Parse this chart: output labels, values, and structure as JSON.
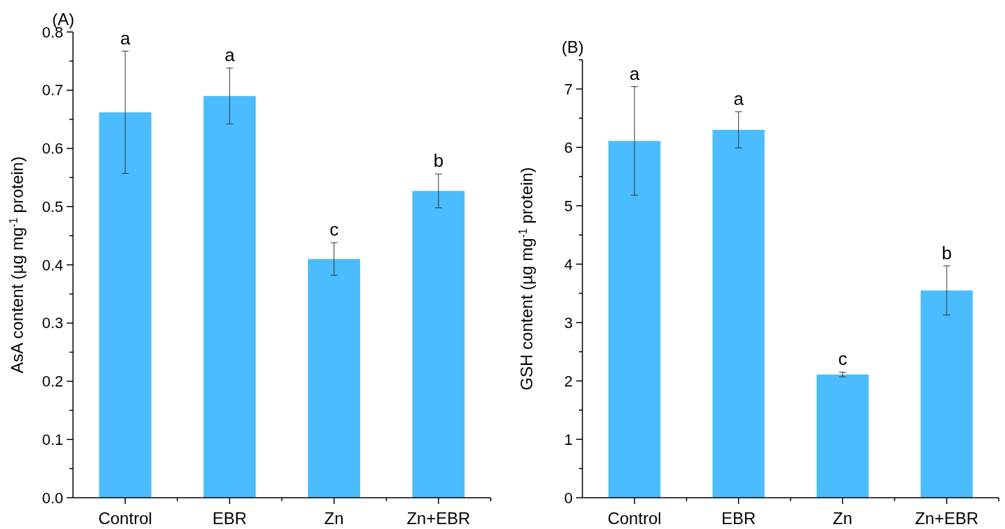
{
  "chart_data": [
    {
      "type": "bar",
      "title": "(A)",
      "ylabel": "AsA content (µg mg$^{-1}$ protein)",
      "categories": [
        "Control",
        "EBR",
        "Zn",
        "Zn+EBR"
      ],
      "values": [
        0.662,
        0.69,
        0.41,
        0.527
      ],
      "errors": [
        0.105,
        0.048,
        0.028,
        0.029
      ],
      "color": "#4bbcfd",
      "ylim": [
        0,
        0.8
      ],
      "yticks": [
        {
          "value": 0,
          "label": "0.0"
        },
        {
          "value": 0.05,
          "label": null
        },
        0.1,
        {
          "value": 0.15,
          "label": null
        },
        0.2,
        {
          "value": 0.25,
          "label": null
        },
        0.3,
        {
          "value": 0.35,
          "label": null
        },
        0.4,
        {
          "value": 0.45,
          "label": null
        },
        0.5,
        {
          "value": 0.55,
          "label": null
        },
        0.6,
        {
          "value": 0.65,
          "label": null
        },
        0.7,
        {
          "value": 0.75,
          "label": null
        },
        0.8
      ],
      "annotations": [
        {
          "text": "a",
          "x": "Control",
          "y": 0.767
        },
        {
          "text": "a",
          "x": "EBR",
          "y": 0.738
        },
        {
          "text": "c",
          "x": "Zn",
          "y": 0.438
        },
        {
          "text": "b",
          "x": "Zn+EBR",
          "y": 0.556
        }
      ]
    },
    {
      "type": "bar",
      "title": "(B)",
      "ylabel": "GSH content (µg mg$^{-1}$ protein)",
      "categories": [
        "Control",
        "EBR",
        "Zn",
        "Zn+EBR"
      ],
      "values": [
        6.11,
        6.3,
        2.11,
        3.55
      ],
      "errors": [
        0.93,
        0.31,
        0.04,
        0.42
      ],
      "color": "#4bbcfd",
      "ylim": [
        0,
        7.5
      ],
      "yticks": [
        0,
        {
          "value": 0.5,
          "label": null
        },
        1,
        {
          "value": 1.5,
          "label": null
        },
        2,
        {
          "value": 2.5,
          "label": null
        },
        3,
        {
          "value": 3.5,
          "label": null
        },
        4,
        {
          "value": 4.5,
          "label": null
        },
        5,
        {
          "value": 5.5,
          "label": null
        },
        6,
        {
          "value": 6.5,
          "label": null
        },
        7,
        {
          "value": 7.5,
          "label": null
        }
      ],
      "annotations": [
        {
          "text": "a",
          "x": "Control",
          "y": 7.04
        },
        {
          "text": "a",
          "x": "EBR",
          "y": 6.61
        },
        {
          "text": "c",
          "x": "Zn",
          "y": 2.15
        },
        {
          "text": "b",
          "x": "Zn+EBR",
          "y": 3.97
        }
      ]
    }
  ]
}
